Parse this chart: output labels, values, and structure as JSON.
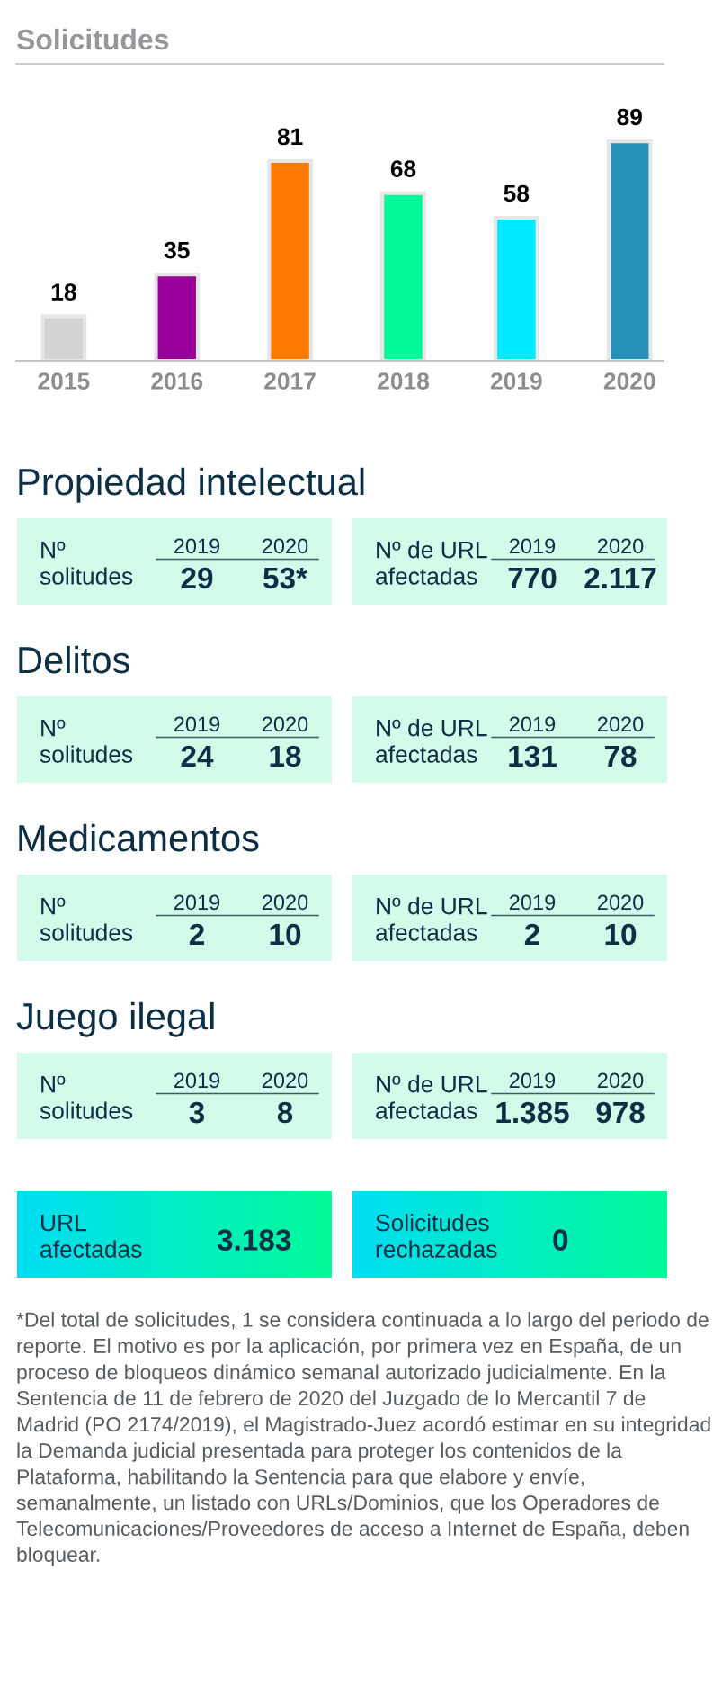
{
  "chart_data": [
    {
      "type": "bar",
      "title": "Solicitudes",
      "categories": [
        "2015",
        "2016",
        "2017",
        "2018",
        "2019",
        "2020"
      ],
      "values": [
        18,
        35,
        81,
        68,
        58,
        89
      ],
      "colors": [
        "#d4d4d4",
        "#990099",
        "#ff7a00",
        "#00fa9a",
        "#00eaff",
        "#2690b6"
      ],
      "data_labels": true
    },
    {
      "type": "other",
      "title": "Propiedad intelectual",
      "categories": [
        "2019",
        "2020"
      ],
      "annotations": [
        "Nº\nsolitudes",
        "29",
        "53*",
        "Nº de URL\nafectadas",
        "770",
        "2.117"
      ]
    },
    {
      "type": "other",
      "title": "Delitos",
      "categories": [
        "2019",
        "2020"
      ],
      "annotations": [
        "Nº\nsolitudes",
        "24",
        "18",
        "Nº de URL\nafectadas",
        "131",
        "78"
      ]
    },
    {
      "type": "other",
      "title": "Medicamentos",
      "categories": [
        "2019",
        "2020"
      ],
      "annotations": [
        "Nº\nsolitudes",
        "2",
        "10",
        "Nº de URL\nafectadas",
        "2",
        "10"
      ]
    },
    {
      "type": "other",
      "title": "Juego ilegal",
      "categories": [
        "2019",
        "2020"
      ],
      "annotations": [
        "Nº\nsolitudes",
        "3",
        "8",
        "Nº de URL\nafectadas",
        "1.385",
        "978"
      ]
    },
    {
      "type": "other",
      "annotations": [
        "URL\nafectadas",
        "3.183",
        "Solicitudes\nrechazadas",
        "0"
      ]
    },
    {
      "type": "other",
      "annotations": [
        "*Del total de solicitudes, 1 se considera continuada a lo largo del periodo de reporte. El motivo es por la aplicación, por primera vez en España, de un proceso de bloqueos dinámico semanal autorizado judicialmente. En la Sentencia de 11 de febrero de 2020 del Juzgado de lo Mercantil 7 de Madrid (PO 2174/2019), el Magistrado-Juez acordó estimar en su integridad la Demanda judicial presentada para proteger los contenidos de la Plataforma, habilitando la Sentencia para que elabore y envíe, semanalmente, un listado con URLs/Dominios, que los Operadores de Telecomunicaciones/Proveedores de acceso a Internet de España, deben bloquear."
      ]
    }
  ]
}
